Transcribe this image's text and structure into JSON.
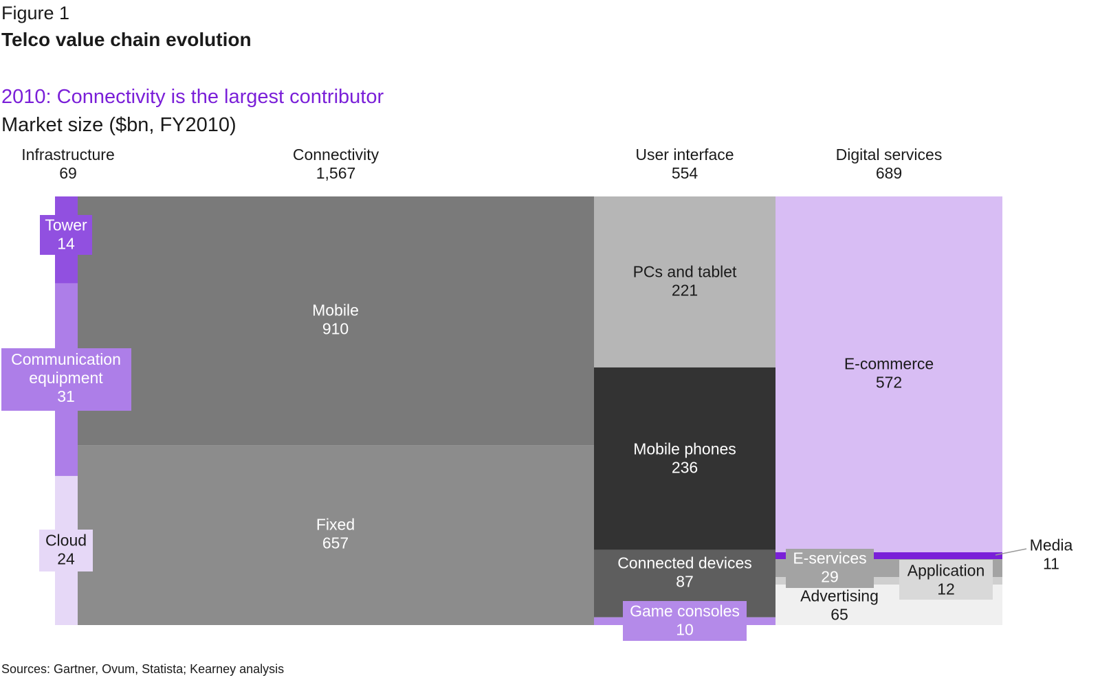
{
  "figure_label": "Figure 1",
  "figure_title": "Telco value chain evolution",
  "subtitle": "2010: Connectivity is the largest contributor",
  "unit_label": "Market size ($bn, FY2010)",
  "source": "Sources: Gartner, Ovum, Statista; Kearney analysis",
  "chart_data": {
    "type": "marimekko",
    "columns": [
      {
        "name": "Infrastructure",
        "total_label": "69",
        "total": 69,
        "segments": [
          {
            "name": "Tower",
            "value": 14,
            "value_label": "14",
            "color": "#9150e0",
            "label_color": "#ffffff",
            "label_bg": "#9150e0"
          },
          {
            "name": "Communication equipment",
            "lines": [
              "Communication",
              "equipment"
            ],
            "value": 31,
            "value_label": "31",
            "color": "#ad7ee8",
            "label_color": "#ffffff",
            "label_bg": "#ad7ee8"
          },
          {
            "name": "Cloud",
            "value": 24,
            "value_label": "24",
            "color": "#e6d8f7",
            "label_color": "#1a1a1a",
            "label_bg": "#e6d8f7"
          }
        ]
      },
      {
        "name": "Connectivity",
        "total_label": "1,567",
        "total": 1567,
        "segments": [
          {
            "name": "Mobile",
            "value": 910,
            "value_label": "910",
            "color": "#7a7a7a",
            "label_color": "#ffffff"
          },
          {
            "name": "Fixed",
            "value": 657,
            "value_label": "657",
            "color": "#8c8c8c",
            "label_color": "#ffffff"
          }
        ]
      },
      {
        "name": "User interface",
        "total_label": "554",
        "total": 554,
        "segments": [
          {
            "name": "PCs and tablet",
            "value": 221,
            "value_label": "221",
            "color": "#b6b6b6",
            "label_color": "#1a1a1a"
          },
          {
            "name": "Mobile phones",
            "value": 236,
            "value_label": "236",
            "color": "#333333",
            "label_color": "#ffffff"
          },
          {
            "name": "Connected devices",
            "value": 87,
            "value_label": "87",
            "color": "#5e5e5e",
            "label_color": "#ffffff"
          },
          {
            "name": "Game consoles",
            "value": 10,
            "value_label": "10",
            "color": "#b48ae9",
            "label_color": "#ffffff",
            "label_bg": "#b48ae9"
          }
        ]
      },
      {
        "name": "Digital services",
        "total_label": "689",
        "total": 689,
        "segments": [
          {
            "name": "E-commerce",
            "value": 572,
            "value_label": "572",
            "color": "#d8bdf4",
            "label_color": "#1a1a1a"
          },
          {
            "name": "Media",
            "value": 11,
            "value_label": "11",
            "color": "#7a1fd8",
            "label_color": "#1a1a1a"
          },
          {
            "name": "E-services",
            "value": 29,
            "value_label": "29",
            "color": "#a3a3a3",
            "label_color": "#ffffff",
            "label_bg": "#a3a3a3"
          },
          {
            "name": "Application",
            "value": 12,
            "value_label": "12",
            "color": "#cfcfcf",
            "label_color": "#1a1a1a",
            "label_bg": "#d9d9d9"
          },
          {
            "name": "Advertising",
            "value": 65,
            "value_label": "65",
            "color": "#f0f0f0",
            "label_color": "#1a1a1a"
          }
        ]
      }
    ]
  }
}
